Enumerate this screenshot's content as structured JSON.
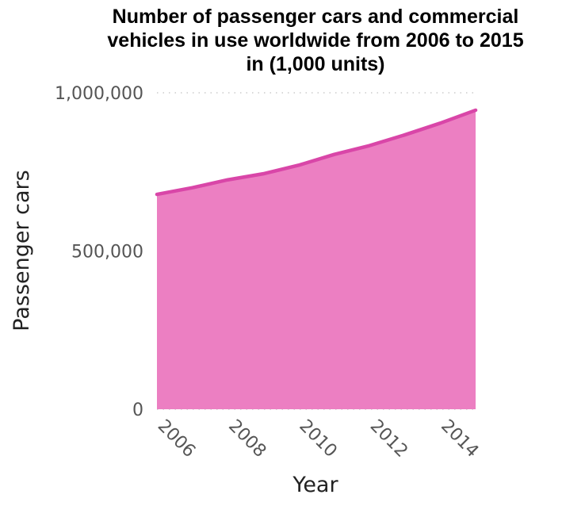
{
  "chart_data": {
    "type": "area",
    "title_lines": [
      "Number of passenger cars and commercial",
      "vehicles in use worldwide from 2006 to 2015",
      "in (1,000 units)"
    ],
    "xlabel": "Year",
    "ylabel": "Passenger cars",
    "x": [
      2006,
      2007,
      2008,
      2009,
      2010,
      2011,
      2012,
      2013,
      2014,
      2015
    ],
    "values": [
      679000,
      700000,
      725000,
      744000,
      771000,
      805000,
      833000,
      867000,
      904000,
      945000
    ],
    "xlim": [
      2006,
      2015
    ],
    "ylim": [
      0,
      1000000
    ],
    "x_ticks": [
      {
        "value": 2006,
        "label": "2006"
      },
      {
        "value": 2008,
        "label": "2008"
      },
      {
        "value": 2010,
        "label": "2010"
      },
      {
        "value": 2012,
        "label": "2012"
      },
      {
        "value": 2014,
        "label": "2014"
      }
    ],
    "y_ticks": [
      {
        "value": 0,
        "label": "0"
      },
      {
        "value": 500000,
        "label": "500,000"
      },
      {
        "value": 1000000,
        "label": "1,000,000"
      }
    ],
    "grid": true,
    "colors": {
      "fill": "#ec7fc2",
      "line": "#d946a8",
      "grid": "#cccccc",
      "tick": "#555555"
    }
  }
}
